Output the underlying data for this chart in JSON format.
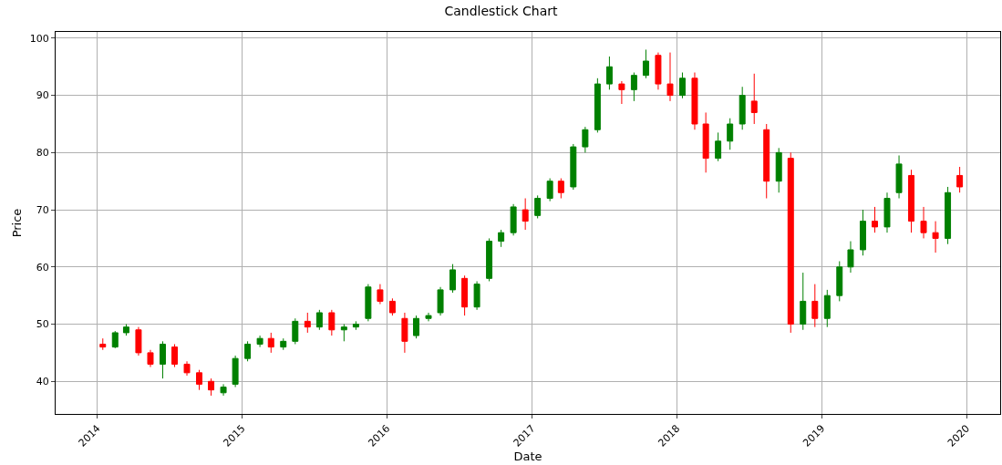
{
  "chart_data": {
    "type": "candlestick",
    "title": "Candlestick Chart",
    "xlabel": "Date",
    "ylabel": "Price",
    "x": [
      "2014-01-15",
      "2014-02-15",
      "2014-03-15",
      "2014-04-15",
      "2014-05-15",
      "2014-06-15",
      "2014-07-15",
      "2014-08-15",
      "2014-09-15",
      "2014-10-15",
      "2014-11-15",
      "2014-12-15",
      "2015-01-15",
      "2015-02-15",
      "2015-03-15",
      "2015-04-15",
      "2015-05-15",
      "2015-06-15",
      "2015-07-15",
      "2015-08-15",
      "2015-09-15",
      "2015-10-15",
      "2015-11-15",
      "2015-12-15",
      "2016-01-15",
      "2016-02-15",
      "2016-03-15",
      "2016-04-15",
      "2016-05-15",
      "2016-06-15",
      "2016-07-15",
      "2016-08-15",
      "2016-09-15",
      "2016-10-15",
      "2016-11-15",
      "2016-12-15",
      "2017-01-15",
      "2017-02-15",
      "2017-03-15",
      "2017-04-15",
      "2017-05-15",
      "2017-06-15",
      "2017-07-15",
      "2017-08-15",
      "2017-09-15",
      "2017-10-15",
      "2017-11-15",
      "2017-12-15",
      "2018-01-15",
      "2018-02-15",
      "2018-03-15",
      "2018-04-15",
      "2018-05-15",
      "2018-06-15",
      "2018-07-15",
      "2018-08-15",
      "2018-09-15",
      "2018-10-15",
      "2018-11-15",
      "2018-12-15",
      "2019-01-15",
      "2019-02-15",
      "2019-03-15",
      "2019-04-15",
      "2019-05-15",
      "2019-06-15",
      "2019-07-15",
      "2019-08-15",
      "2019-09-15",
      "2019-10-15",
      "2019-11-15",
      "2019-12-15"
    ],
    "ohlc": [
      [
        46.5,
        47.5,
        45.5,
        46
      ],
      [
        46,
        48.8,
        45.8,
        48.5
      ],
      [
        48.5,
        50,
        48,
        49.5
      ],
      [
        49,
        49.5,
        44.5,
        45
      ],
      [
        45,
        45.5,
        42.5,
        43
      ],
      [
        43,
        47,
        40.5,
        46.5
      ],
      [
        46,
        46.5,
        42.5,
        43
      ],
      [
        43,
        43.5,
        41,
        41.5
      ],
      [
        41.5,
        42,
        38.5,
        39.5
      ],
      [
        40,
        40.5,
        37.5,
        38.5
      ],
      [
        38,
        39.5,
        37.5,
        39
      ],
      [
        39.5,
        44.5,
        39,
        44
      ],
      [
        44,
        47,
        43.5,
        46.5
      ],
      [
        46.5,
        48,
        46,
        47.5
      ],
      [
        47.5,
        48.5,
        45,
        46
      ],
      [
        46,
        47.5,
        45.5,
        47
      ],
      [
        47,
        51,
        46.5,
        50.5
      ],
      [
        50.5,
        52,
        48.5,
        49.5
      ],
      [
        49.5,
        52.5,
        49,
        52
      ],
      [
        52,
        52.5,
        48,
        49
      ],
      [
        49,
        50,
        47,
        49.5
      ],
      [
        49.5,
        50.5,
        49,
        50
      ],
      [
        51,
        57,
        50.5,
        56.5
      ],
      [
        56,
        57,
        53.5,
        54
      ],
      [
        54,
        54.5,
        51.5,
        52
      ],
      [
        51,
        52,
        45,
        47
      ],
      [
        48,
        51.5,
        47.5,
        51
      ],
      [
        51,
        52,
        50.5,
        51.5
      ],
      [
        52,
        56.5,
        51.5,
        56
      ],
      [
        56,
        60.5,
        55.5,
        59.5
      ],
      [
        58,
        58.5,
        51.5,
        53
      ],
      [
        53,
        57.5,
        52.5,
        57
      ],
      [
        58,
        65,
        57.5,
        64.5
      ],
      [
        64.5,
        66.5,
        63.5,
        66
      ],
      [
        66,
        71,
        65.5,
        70.5
      ],
      [
        70,
        72,
        66.5,
        68
      ],
      [
        69,
        72.5,
        68.5,
        72
      ],
      [
        72,
        75.5,
        71.5,
        75
      ],
      [
        75,
        75.5,
        72,
        73
      ],
      [
        74,
        81.5,
        73.5,
        81
      ],
      [
        81,
        84.5,
        80,
        84
      ],
      [
        84,
        93,
        83.5,
        92
      ],
      [
        92,
        96.8,
        91,
        95
      ],
      [
        92,
        92.5,
        88.5,
        91
      ],
      [
        91,
        94,
        89,
        93.5
      ],
      [
        93.5,
        98,
        93,
        96
      ],
      [
        97,
        97.5,
        91,
        92
      ],
      [
        92,
        97.5,
        89,
        90
      ],
      [
        90,
        94,
        89.5,
        93
      ],
      [
        93,
        94,
        84,
        85
      ],
      [
        85,
        87,
        76.5,
        79
      ],
      [
        79,
        83.5,
        78.5,
        82
      ],
      [
        82,
        86,
        80.5,
        85
      ],
      [
        85,
        91.5,
        84,
        90
      ],
      [
        89,
        93.8,
        85,
        87
      ],
      [
        84,
        85,
        72,
        75
      ],
      [
        75,
        80.8,
        73,
        80
      ],
      [
        79,
        80,
        48.5,
        50
      ],
      [
        50,
        59,
        49,
        54
      ],
      [
        54,
        57,
        49.5,
        51
      ],
      [
        51,
        56,
        49.5,
        55
      ],
      [
        55,
        61,
        54,
        60
      ],
      [
        60,
        64.5,
        59,
        63
      ],
      [
        63,
        70,
        62,
        68
      ],
      [
        68,
        70.5,
        66,
        67
      ],
      [
        67,
        73,
        66,
        72
      ],
      [
        73,
        79.5,
        72,
        78
      ],
      [
        76,
        77,
        66,
        68
      ],
      [
        68,
        70.5,
        65,
        66
      ],
      [
        66,
        68,
        62.5,
        65
      ],
      [
        65,
        74,
        64,
        73
      ],
      [
        76,
        77.5,
        73,
        74
      ]
    ],
    "xlim": [
      "2013-09-18",
      "2020-03-26"
    ],
    "xticks": [
      "2014",
      "2015",
      "2016",
      "2017",
      "2018",
      "2019",
      "2020"
    ],
    "ylim": [
      34.3,
      101.1
    ],
    "yticks": [
      40,
      50,
      60,
      70,
      80,
      90,
      100
    ],
    "grid": true
  }
}
